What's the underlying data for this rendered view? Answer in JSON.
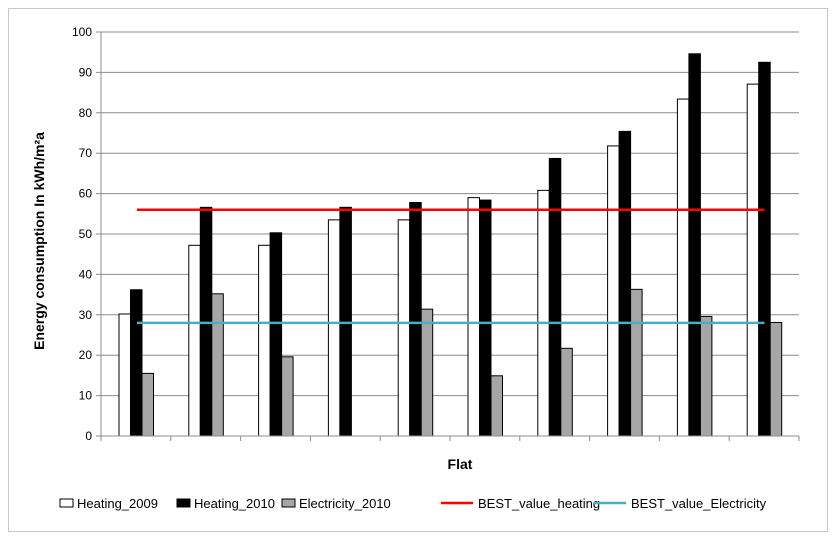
{
  "chart_data": {
    "type": "bar",
    "title": "",
    "xlabel": "Flat",
    "ylabel": "Energy consumption In kWh/m²a",
    "ylim": [
      0,
      100
    ],
    "yticks": [
      0,
      10,
      20,
      30,
      40,
      50,
      60,
      70,
      80,
      90,
      100
    ],
    "categories": [
      "",
      "",
      "",
      "",
      "",
      "",
      "",
      "",
      "",
      ""
    ],
    "grid": true,
    "legend_position": "bottom",
    "series": [
      {
        "name": "Heating_2009",
        "kind": "bar",
        "color": "#ffffff",
        "stroke": "#000000",
        "values": [
          30.2,
          47.2,
          47.2,
          53.5,
          53.5,
          59.0,
          60.8,
          71.8,
          83.4,
          87.1
        ]
      },
      {
        "name": "Heating_2010",
        "kind": "bar",
        "color": "#000000",
        "stroke": "#000000",
        "values": [
          36.2,
          56.6,
          50.3,
          56.6,
          57.8,
          58.4,
          68.7,
          75.4,
          94.6,
          92.5
        ]
      },
      {
        "name": "Electricity_2010",
        "kind": "bar",
        "color": "#a6a6a6",
        "stroke": "#000000",
        "values": [
          15.5,
          35.2,
          19.6,
          0,
          31.4,
          14.9,
          21.7,
          36.3,
          29.6,
          28.1
        ]
      },
      {
        "name": "BEST_value_heating",
        "kind": "line",
        "color": "#ff0000",
        "value": 56
      },
      {
        "name": "BEST_value_Electricity",
        "kind": "line",
        "color": "#4bacc6",
        "value": 28
      }
    ]
  }
}
